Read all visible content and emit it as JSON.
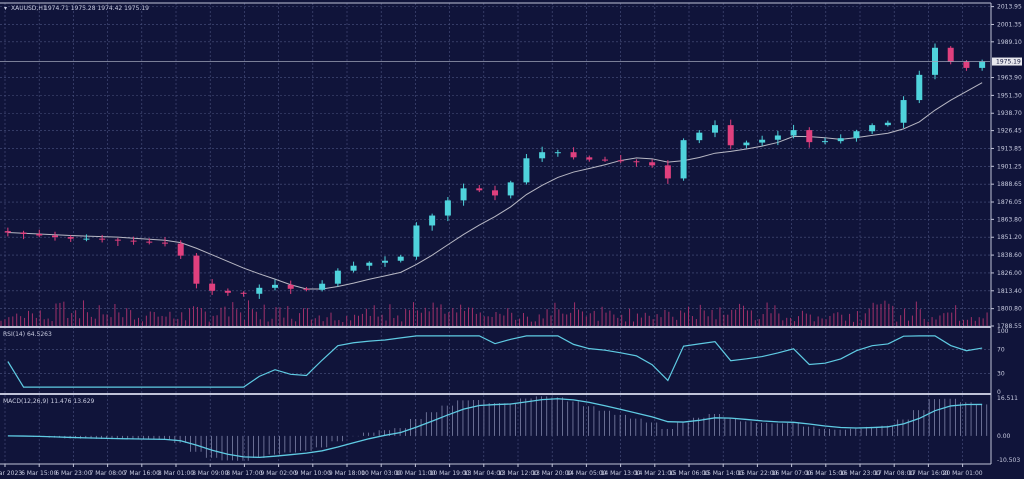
{
  "header": {
    "symbol": "XAUUSD,H1",
    "ohlc": "1974.71 1975.28 1974.42 1975.19"
  },
  "rsi_label": "RSI(14) 64.5263",
  "macd_label": "MACD(12,26,9) 11.476 13.629",
  "colors": {
    "background": "#10143a",
    "grid": "#4b5380",
    "bull": "#4fd3dc",
    "bear": "#e0407e",
    "ma": "#b8b8c4",
    "osc": "#5fcbe3",
    "volume": "#a0306a"
  },
  "chart_data": {
    "type": "candlestick",
    "price_axis_ticks": [
      "2013.95",
      "2001.35",
      "1989.10",
      "1963.90",
      "1951.30",
      "1938.70",
      "1926.45",
      "1913.85",
      "1901.25",
      "1888.65",
      "1876.05",
      "1863.80",
      "1851.20",
      "1838.60",
      "1826.00",
      "1813.40",
      "1800.80",
      "1788.55"
    ],
    "current_price": "1975.19",
    "ylim": [
      1788.55,
      2016.5
    ],
    "closes": [
      1854.5,
      1853.5,
      1852.4,
      1851.3,
      1850.2,
      1850.2,
      1849.5,
      1848.8,
      1848.1,
      1847.4,
      1846.7,
      1838.2,
      1818.4,
      1813.4,
      1812.0,
      1811.3,
      1815.5,
      1817.6,
      1814.8,
      1814.1,
      1818.4,
      1827.6,
      1831.1,
      1833.2,
      1834.6,
      1837.5,
      1859.5,
      1866.5,
      1877.2,
      1885.7,
      1884.3,
      1880.7,
      1889.9,
      1906.9,
      1911.2,
      1911.2,
      1907.6,
      1906.0,
      1905.5,
      1904.8,
      1904.1,
      1901.9,
      1892.7,
      1919.7,
      1925.0,
      1930.3,
      1916.1,
      1918.0,
      1920.0,
      1923.0,
      1926.8,
      1918.3,
      1919.0,
      1921.1,
      1926.0,
      1930.3,
      1932.0,
      1948.0,
      1965.8,
      1984.9,
      1975.0,
      1970.7,
      1975.2
    ],
    "rsi_axis_ticks": [
      "100",
      "70",
      "30",
      "0"
    ],
    "macd_axis_ticks": [
      "16.511",
      "0.00",
      "-10.503"
    ],
    "time_labels": [
      "6 Mar 2023",
      "6 Mar 15:00",
      "6 Mar 23:00",
      "7 Mar 08:00",
      "7 Mar 16:00",
      "8 Mar 01:00",
      "8 Mar 09:00",
      "8 Mar 17:00",
      "9 Mar 02:00",
      "9 Mar 10:00",
      "9 Mar 18:00",
      "10 Mar 03:00",
      "10 Mar 11:00",
      "10 Mar 19:00",
      "13 Mar 04:00",
      "13 Mar 12:00",
      "13 Mar 20:00",
      "14 Mar 05:00",
      "14 Mar 13:00",
      "14 Mar 21:00",
      "15 Mar 06:00",
      "15 Mar 14:00",
      "15 Mar 22:00",
      "16 Mar 07:00",
      "16 Mar 15:00",
      "16 Mar 23:00",
      "17 Mar 08:00",
      "17 Mar 16:00",
      "20 Mar 01:00"
    ]
  }
}
